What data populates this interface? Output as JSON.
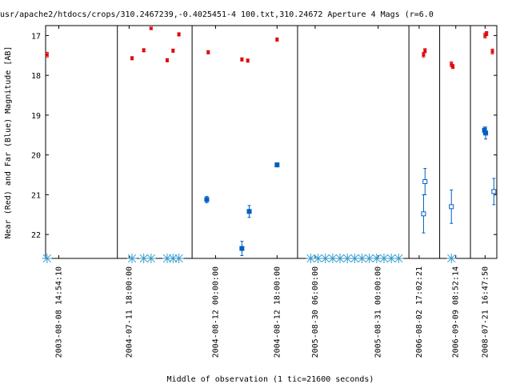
{
  "chart_data": {
    "type": "scatter",
    "title": "usr/apache2/htdocs/crops/310.2467239,-0.4025451-4 100.txt,310.24672    Aperture 4 Mags (r=6.0",
    "xlabel": "Middle of observation (1 tic=21600 seconds)",
    "ylabel": "Near (Red) and Far (Blue) Magnitude [AB]",
    "ylim": [
      16.75,
      22.6
    ],
    "y_inverted": true,
    "y_ticks": [
      17,
      18,
      19,
      20,
      21,
      22
    ],
    "grid": false,
    "legend": "none",
    "colors": {
      "near": "#dd0000",
      "far": "#0060c0",
      "limit": "#3399cc"
    },
    "segments": [
      {
        "x_start": 0,
        "x_end": 2.45,
        "tick_labels": [
          {
            "x": 0.45,
            "label": "2003-08-08 14:54:10"
          }
        ]
      },
      {
        "x_start": 2.45,
        "x_end": 5,
        "tick_labels": [
          {
            "x": 0.4,
            "label": "2004-07-11 18:00:00"
          }
        ]
      },
      {
        "x_start": 5,
        "x_end": 8.6,
        "tick_labels": [
          {
            "x": 0.8,
            "label": "2004-08-12 00:00:00"
          },
          {
            "x": 2.9,
            "label": "2004-08-12 18:00:00"
          }
        ]
      },
      {
        "x_start": 8.6,
        "x_end": 12.4,
        "tick_labels": [
          {
            "x": 0.6,
            "label": "2005-08-30 06:00:00"
          },
          {
            "x": 2.75,
            "label": "2005-08-31 00:00:00"
          }
        ]
      },
      {
        "x_start": 12.4,
        "x_end": 13.45,
        "tick_labels": [
          {
            "x": 0.35,
            "label": "2006-08-02 17:02:21"
          }
        ]
      },
      {
        "x_start": 13.45,
        "x_end": 14.5,
        "tick_labels": [
          {
            "x": 0.55,
            "label": "2006-09-09 08:52:14"
          }
        ]
      },
      {
        "x_start": 14.5,
        "x_end": 15.4,
        "tick_labels": [
          {
            "x": 0.5,
            "label": "2008-07-21 16:47:50"
          }
        ]
      }
    ],
    "series": [
      {
        "role": "near",
        "values": [
          {
            "x": 0.05,
            "y": 17.48,
            "err": 0.06
          },
          {
            "x": 2.95,
            "y": 17.57,
            "err": 0.04
          },
          {
            "x": 3.35,
            "y": 17.37,
            "err": 0.04
          },
          {
            "x": 3.6,
            "y": 16.82,
            "err": 0.03
          },
          {
            "x": 4.15,
            "y": 17.62,
            "err": 0.04
          },
          {
            "x": 4.35,
            "y": 17.38,
            "err": 0.04
          },
          {
            "x": 4.55,
            "y": 16.97,
            "err": 0.04
          },
          {
            "x": 5.55,
            "y": 17.42,
            "err": 0.04
          },
          {
            "x": 6.7,
            "y": 17.6,
            "err": 0.04
          },
          {
            "x": 6.9,
            "y": 17.63,
            "err": 0.04
          },
          {
            "x": 7.9,
            "y": 17.1,
            "err": 0.04
          },
          {
            "x": 12.9,
            "y": 17.48,
            "err": 0.06
          },
          {
            "x": 12.95,
            "y": 17.38,
            "err": 0.05
          },
          {
            "x": 13.85,
            "y": 17.72,
            "err": 0.06
          },
          {
            "x": 13.9,
            "y": 17.78,
            "err": 0.05
          },
          {
            "x": 15.0,
            "y": 17.0,
            "err": 0.06
          },
          {
            "x": 15.05,
            "y": 16.95,
            "err": 0.05
          },
          {
            "x": 15.25,
            "y": 17.4,
            "err": 0.06
          }
        ]
      },
      {
        "role": "far",
        "values": [
          {
            "x": 5.5,
            "y": 21.12,
            "err": 0.08,
            "filled": true
          },
          {
            "x": 6.7,
            "y": 22.35,
            "err": 0.18,
            "filled": true
          },
          {
            "x": 6.95,
            "y": 21.42,
            "err": 0.15,
            "filled": true
          },
          {
            "x": 7.9,
            "y": 20.25,
            "err": 0.05,
            "filled": true
          },
          {
            "x": 12.9,
            "y": 21.48,
            "err": 0.48,
            "filled": false
          },
          {
            "x": 12.95,
            "y": 20.67,
            "err": 0.33,
            "filled": false
          },
          {
            "x": 13.85,
            "y": 21.3,
            "err": 0.42,
            "filled": false
          },
          {
            "x": 14.98,
            "y": 19.38,
            "err": 0.08,
            "filled": true
          },
          {
            "x": 15.02,
            "y": 19.45,
            "err": 0.15,
            "filled": true
          },
          {
            "x": 15.3,
            "y": 20.92,
            "err": 0.33,
            "filled": false
          }
        ]
      },
      {
        "role": "limit",
        "y": 22.6,
        "x": [
          0.05,
          2.95,
          3.35,
          3.6,
          4.15,
          4.35,
          4.55,
          9.05,
          9.3,
          9.55,
          9.8,
          10.05,
          10.3,
          10.55,
          10.8,
          11.05,
          11.3,
          11.55,
          11.8,
          12.05,
          13.85
        ]
      }
    ]
  }
}
